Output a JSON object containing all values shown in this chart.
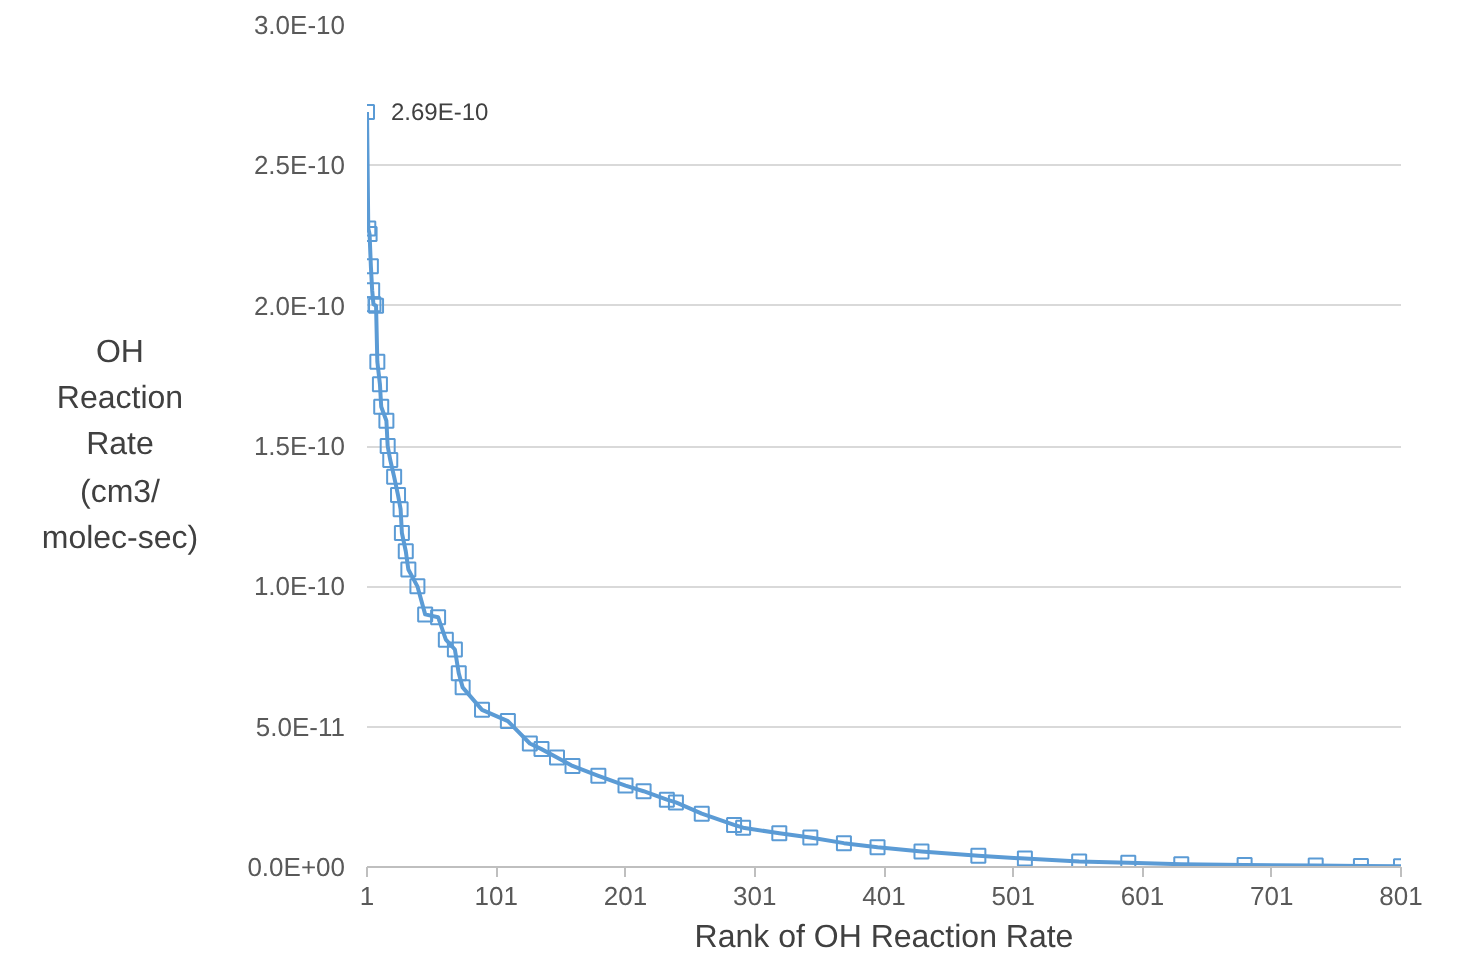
{
  "chart_data": {
    "type": "line",
    "xlabel": "Rank of OH Reaction Rate",
    "ylabel": "OH\nReaction\nRate\n(cm3/\nmolec-sec)",
    "x": [
      1,
      2,
      3,
      4,
      5,
      6,
      8,
      9,
      11,
      12,
      16,
      17,
      19,
      22,
      25,
      27,
      28,
      31,
      33,
      40,
      46,
      56,
      62,
      69,
      72,
      75,
      90,
      110,
      127,
      136,
      148,
      160,
      180,
      201,
      215,
      233,
      240,
      260,
      285,
      292,
      320,
      344,
      370,
      396,
      430,
      474,
      510,
      552,
      590,
      631,
      680,
      735,
      770,
      801
    ],
    "series": [
      {
        "color": "#5b9bd5",
        "values": [
          2.69e-10,
          2.275e-10,
          2.255e-10,
          2.14e-10,
          2.055e-10,
          2.005e-10,
          2e-10,
          1.8e-10,
          1.72e-10,
          1.64e-10,
          1.59e-10,
          1.5e-10,
          1.45e-10,
          1.39e-10,
          1.325e-10,
          1.275e-10,
          1.19e-10,
          1.125e-10,
          1.06e-10,
          1e-10,
          9e-11,
          8.9e-11,
          8.1e-11,
          7.75e-11,
          6.9e-11,
          6.4e-11,
          5.6e-11,
          5.2e-11,
          4.4e-11,
          4.2e-11,
          3.9e-11,
          3.6e-11,
          3.25e-11,
          2.9e-11,
          2.7e-11,
          2.4e-11,
          2.3e-11,
          1.9e-11,
          1.5e-11,
          1.4e-11,
          1.2e-11,
          1.05e-11,
          8.5e-12,
          7e-12,
          5.5e-12,
          4e-12,
          3e-12,
          2e-12,
          1.5e-12,
          1e-12,
          7e-13,
          5e-13,
          4e-13,
          3e-13
        ],
        "value_labels": [
          "2.69E-10",
          null,
          null,
          null,
          null,
          null,
          null,
          null,
          null,
          null,
          null,
          null,
          null,
          null,
          null,
          null,
          null,
          null,
          null,
          null,
          null,
          null,
          null,
          null,
          null,
          null,
          null,
          null,
          null,
          null,
          null,
          null,
          null,
          null,
          null,
          null,
          null,
          null,
          null,
          null,
          null,
          null,
          null,
          null,
          null,
          null,
          null,
          null,
          null,
          null,
          null,
          null,
          null,
          null
        ]
      }
    ],
    "xlim": [
      1,
      801
    ],
    "xticks": [
      1,
      101,
      201,
      301,
      401,
      501,
      601,
      701,
      801
    ],
    "ylim": [
      0,
      3e-10
    ],
    "yticks": [
      {
        "value": 0,
        "label": "0.0E+00"
      },
      {
        "value": 5e-11,
        "label": "5.0E-11"
      },
      {
        "value": 1e-10,
        "label": "1.0E-10"
      },
      {
        "value": 1.5e-10,
        "label": "1.5E-10"
      },
      {
        "value": 2e-10,
        "label": "2.0E-10"
      },
      {
        "value": 2.5e-10,
        "label": "2.5E-10"
      },
      {
        "value": 3e-10,
        "label": "3.0E-10"
      }
    ],
    "grid": "y",
    "marker": "square",
    "line_style": "solid"
  }
}
